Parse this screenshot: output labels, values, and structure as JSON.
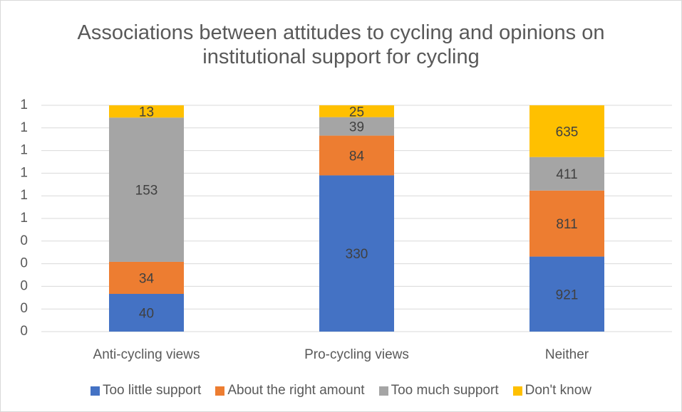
{
  "chart_data": {
    "type": "bar",
    "stacking": "percent",
    "title": "Associations between attitudes to cycling and opinions on institutional support for cycling",
    "categories": [
      "Anti-cycling views",
      "Pro-cycling views",
      "Neither"
    ],
    "series": [
      {
        "name": "Too little support",
        "color": "#4472c4",
        "values": [
          40,
          330,
          921
        ]
      },
      {
        "name": "About the right amount",
        "color": "#ed7d31",
        "values": [
          34,
          84,
          811
        ]
      },
      {
        "name": "Too much support",
        "color": "#a5a5a5",
        "values": [
          153,
          39,
          411
        ]
      },
      {
        "name": "Don't know",
        "color": "#ffc000",
        "values": [
          13,
          25,
          635
        ]
      }
    ],
    "ylim": [
      0,
      1
    ],
    "yticks": [
      0,
      {
        "value": 0.1,
        "label": "0"
      },
      {
        "value": 0.2,
        "label": "0"
      },
      {
        "value": 0.3,
        "label": "0"
      },
      {
        "value": 0.4,
        "label": "0"
      },
      {
        "value": 0.5,
        "label": "1"
      },
      {
        "value": 0.6,
        "label": "1"
      },
      {
        "value": 0.7,
        "label": "1"
      },
      {
        "value": 0.8,
        "label": "1"
      },
      {
        "value": 0.9,
        "label": "1"
      },
      1
    ],
    "grid": true,
    "legend": "bottom"
  }
}
